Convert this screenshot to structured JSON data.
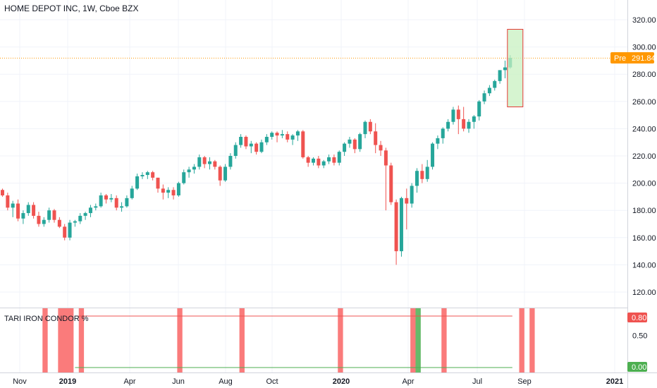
{
  "header": {
    "symbol_title": "HOME DEPOT INC, 1W, Cboe BZX"
  },
  "price_pane": {
    "y_ticks": [
      "120.00",
      "140.00",
      "160.00",
      "180.00",
      "200.00",
      "220.00",
      "240.00",
      "260.00",
      "280.00",
      "300.00",
      "320.00"
    ],
    "last_label_prefix": "Pre",
    "last_value": "291.84",
    "colors": {
      "up": "#26a69a",
      "down": "#ef5350",
      "pre_line": "#ff9800",
      "highlight_fill": "#c8f0c0",
      "highlight_border": "#e53935"
    }
  },
  "indicator_pane": {
    "title": "TARI IRON CONDOR %",
    "y_ticks": [
      "0.50"
    ],
    "upper_value": "0.80",
    "lower_value": "0.00",
    "colors": {
      "upper": "#ef5350",
      "lower": "#4caf50",
      "bar_red": "#fa7b7b",
      "bar_green": "#66bb6a"
    }
  },
  "time_axis": {
    "labels": [
      "Nov",
      "2019",
      "Apr",
      "Jun",
      "Aug",
      "Oct",
      "2020",
      "Apr",
      "Jul",
      "Sep",
      "2021"
    ]
  },
  "chart_data": {
    "type": "candlestick",
    "title": "HOME DEPOT INC, 1W, Cboe BZX",
    "ylim": [
      110,
      325
    ],
    "last_price": 291.84,
    "candles": [
      [
        195,
        196,
        190,
        191
      ],
      [
        191,
        193,
        180,
        182
      ],
      [
        182,
        187,
        175,
        185
      ],
      [
        185,
        188,
        172,
        174
      ],
      [
        174,
        180,
        170,
        178
      ],
      [
        178,
        186,
        176,
        184
      ],
      [
        184,
        186,
        174,
        176
      ],
      [
        176,
        179,
        168,
        170
      ],
      [
        170,
        175,
        168,
        173
      ],
      [
        173,
        182,
        171,
        180
      ],
      [
        180,
        181,
        171,
        173
      ],
      [
        173,
        175,
        167,
        168
      ],
      [
        168,
        170,
        158,
        160
      ],
      [
        160,
        173,
        158,
        171
      ],
      [
        171,
        173,
        168,
        172
      ],
      [
        172,
        178,
        170,
        176
      ],
      [
        176,
        179,
        173,
        178
      ],
      [
        178,
        184,
        175,
        182
      ],
      [
        182,
        185,
        180,
        183
      ],
      [
        183,
        193,
        182,
        191
      ],
      [
        191,
        192,
        185,
        188
      ],
      [
        188,
        192,
        186,
        189
      ],
      [
        189,
        191,
        180,
        182
      ],
      [
        182,
        186,
        179,
        183
      ],
      [
        183,
        191,
        182,
        189
      ],
      [
        189,
        198,
        188,
        196
      ],
      [
        196,
        207,
        195,
        205
      ],
      [
        205,
        208,
        203,
        206
      ],
      [
        206,
        209,
        203,
        208
      ],
      [
        208,
        209,
        202,
        204
      ],
      [
        204,
        204,
        193,
        196
      ],
      [
        196,
        199,
        188,
        193
      ],
      [
        193,
        197,
        189,
        195
      ],
      [
        195,
        197,
        188,
        191
      ],
      [
        191,
        201,
        190,
        200
      ],
      [
        200,
        210,
        199,
        208
      ],
      [
        208,
        212,
        204,
        210
      ],
      [
        210,
        214,
        207,
        212
      ],
      [
        212,
        221,
        210,
        219
      ],
      [
        219,
        220,
        211,
        214
      ],
      [
        214,
        219,
        210,
        216
      ],
      [
        216,
        217,
        210,
        212
      ],
      [
        212,
        213,
        198,
        202
      ],
      [
        202,
        214,
        201,
        212
      ],
      [
        212,
        222,
        210,
        220
      ],
      [
        220,
        230,
        218,
        228
      ],
      [
        228,
        236,
        226,
        234
      ],
      [
        234,
        235,
        225,
        227
      ],
      [
        227,
        231,
        222,
        229
      ],
      [
        229,
        230,
        221,
        223
      ],
      [
        223,
        232,
        222,
        230
      ],
      [
        230,
        236,
        228,
        234
      ],
      [
        234,
        238,
        232,
        237
      ],
      [
        237,
        238,
        230,
        235
      ],
      [
        235,
        239,
        233,
        236
      ],
      [
        236,
        238,
        230,
        232
      ],
      [
        232,
        236,
        228,
        235
      ],
      [
        235,
        239,
        231,
        238
      ],
      [
        238,
        239,
        218,
        219
      ],
      [
        219,
        220,
        212,
        215
      ],
      [
        215,
        219,
        213,
        218
      ],
      [
        218,
        220,
        211,
        213
      ],
      [
        213,
        217,
        211,
        216
      ],
      [
        216,
        221,
        214,
        219
      ],
      [
        219,
        221,
        213,
        215
      ],
      [
        215,
        224,
        213,
        223
      ],
      [
        223,
        230,
        220,
        229
      ],
      [
        229,
        234,
        226,
        232
      ],
      [
        232,
        233,
        222,
        225
      ],
      [
        225,
        237,
        223,
        236
      ],
      [
        236,
        246,
        233,
        245
      ],
      [
        245,
        247,
        236,
        238
      ],
      [
        238,
        244,
        222,
        228
      ],
      [
        228,
        231,
        220,
        224
      ],
      [
        224,
        226,
        180,
        213
      ],
      [
        213,
        215,
        184,
        186
      ],
      [
        186,
        188,
        140,
        150
      ],
      [
        150,
        190,
        146,
        189
      ],
      [
        189,
        196,
        166,
        185
      ],
      [
        185,
        200,
        182,
        198
      ],
      [
        198,
        211,
        193,
        209
      ],
      [
        209,
        214,
        200,
        203
      ],
      [
        203,
        217,
        201,
        212
      ],
      [
        212,
        230,
        210,
        229
      ],
      [
        229,
        235,
        225,
        233
      ],
      [
        233,
        241,
        229,
        240
      ],
      [
        240,
        247,
        238,
        245
      ],
      [
        245,
        256,
        243,
        254
      ],
      [
        254,
        257,
        236,
        247
      ],
      [
        247,
        256,
        238,
        240
      ],
      [
        240,
        247,
        237,
        245
      ],
      [
        245,
        250,
        240,
        249
      ],
      [
        249,
        261,
        246,
        260
      ],
      [
        260,
        268,
        258,
        266
      ],
      [
        266,
        272,
        264,
        270
      ],
      [
        270,
        276,
        268,
        275
      ],
      [
        275,
        283,
        273,
        283
      ],
      [
        283,
        290,
        277,
        285
      ],
      [
        285,
        294,
        284,
        292
      ]
    ],
    "highlight_box": {
      "price_high": 313,
      "price_low": 256
    },
    "indicator": {
      "name": "TARI IRON CONDOR %",
      "upper_value": 0.8,
      "lower_value": 0.0,
      "signal_bars": [
        {
          "from": 8,
          "to": 9,
          "color": "red"
        },
        {
          "from": 11,
          "to": 14,
          "color": "red"
        },
        {
          "from": 15,
          "to": 16,
          "color": "red"
        },
        {
          "from": 34,
          "to": 35,
          "color": "red"
        },
        {
          "from": 46,
          "to": 47,
          "color": "red"
        },
        {
          "from": 65,
          "to": 66,
          "color": "red"
        },
        {
          "from": 79,
          "to": 80,
          "color": "red"
        },
        {
          "from": 80,
          "to": 81,
          "color": "green"
        },
        {
          "from": 85,
          "to": 86,
          "color": "red"
        },
        {
          "from": 100,
          "to": 101,
          "color": "red"
        },
        {
          "from": 102,
          "to": 103,
          "color": "red"
        }
      ]
    }
  }
}
